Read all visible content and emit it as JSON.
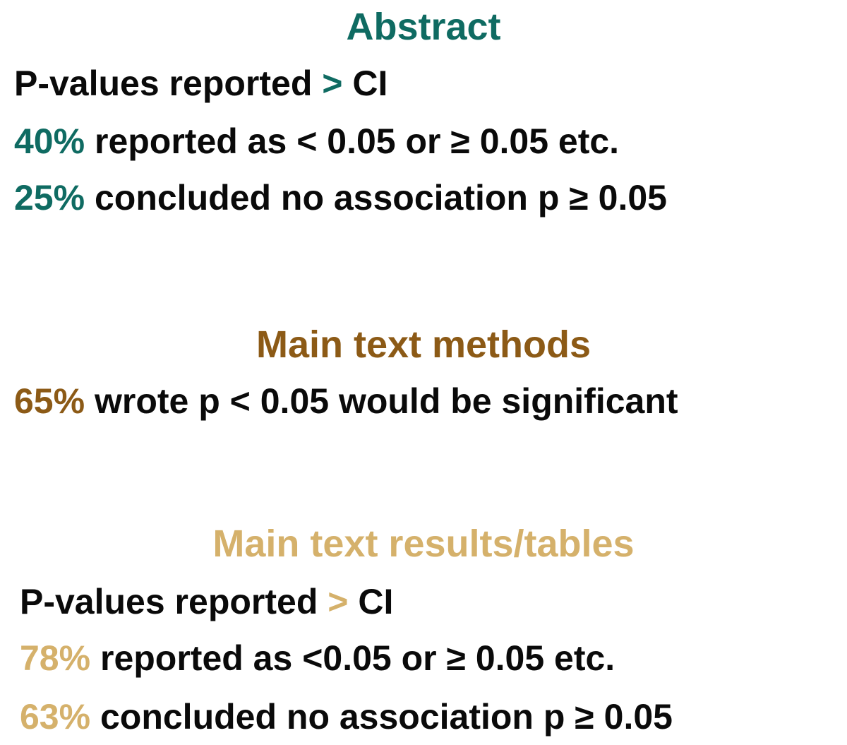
{
  "sections": [
    {
      "heading": "Abstract",
      "color": "#0f6b62",
      "lines": [
        [
          "P-values reported",
          ">",
          "CI"
        ],
        [
          "40%",
          "reported as < 0.05 or ≥ 0.05 etc."
        ],
        [
          "25%",
          "concluded no association p ≥ 0.05"
        ]
      ]
    },
    {
      "heading": "Main text methods",
      "color": "#8c5a16",
      "lines": [
        [
          "65%",
          "wrote p < 0.05 would be significant"
        ]
      ]
    },
    {
      "heading": "Main text results/tables",
      "color": "#d5b16b",
      "lines": [
        [
          "P-values reported",
          ">",
          "CI"
        ],
        [
          "78%",
          "reported as <0.05 or ≥ 0.05 etc."
        ],
        [
          "63%",
          "concluded no association p ≥ 0.05"
        ]
      ]
    }
  ]
}
